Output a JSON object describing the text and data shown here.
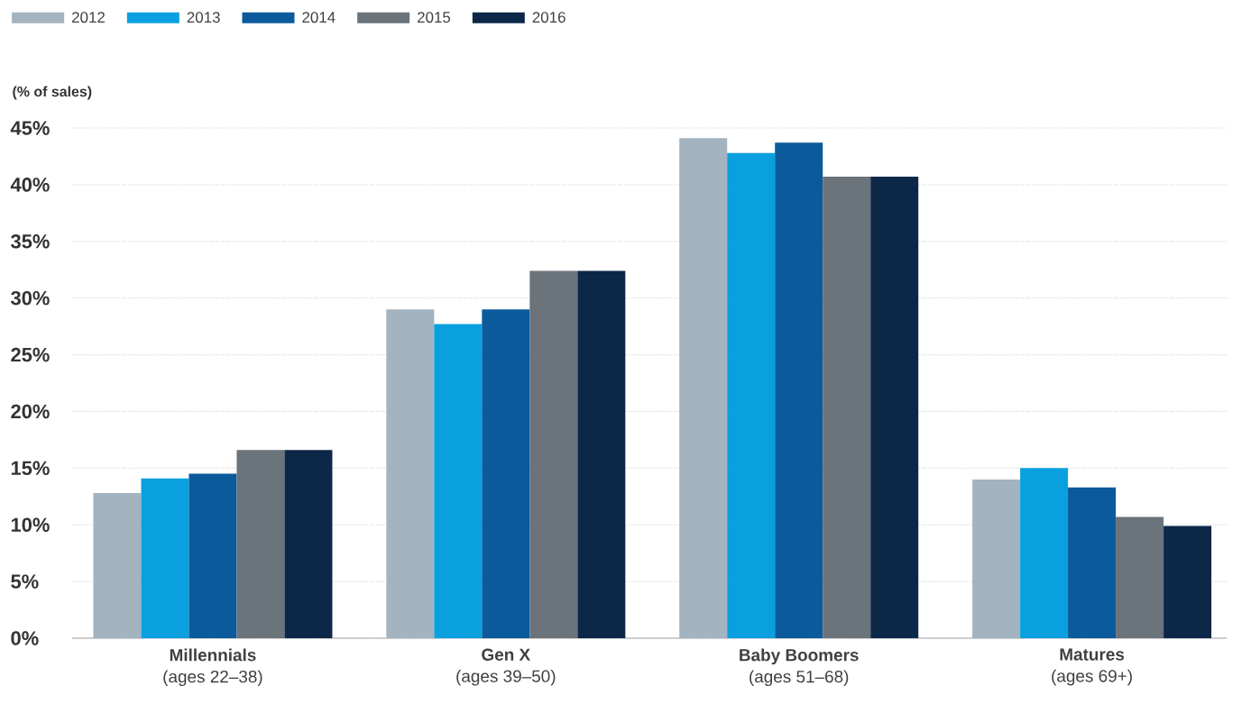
{
  "chart_data": {
    "type": "bar",
    "ylabel": "(% of sales)",
    "categories": [
      "**Millennials**\n(ages 22–38)",
      "**Gen X**\n(ages 39–50)",
      "**Baby Boomers**\n(ages 51–68)",
      "**Matures**\n(ages 69+)"
    ],
    "series": [
      {
        "name": "2012",
        "color": "#a3b3bf",
        "values": [
          12.8,
          29.0,
          44.1,
          14.0
        ]
      },
      {
        "name": "2013",
        "color": "#0aa0e0",
        "values": [
          14.1,
          27.7,
          42.8,
          15.0
        ]
      },
      {
        "name": "2014",
        "color": "#0a5a9c",
        "values": [
          14.5,
          29.0,
          43.7,
          13.3
        ]
      },
      {
        "name": "2015",
        "color": "#6b737b",
        "values": [
          16.6,
          32.4,
          40.7,
          10.7
        ]
      },
      {
        "name": "2016",
        "color": "#0c2748",
        "values": [
          16.6,
          32.4,
          40.7,
          9.9
        ]
      }
    ],
    "ylim": [
      0,
      45
    ],
    "yticks": [
      {
        "value": 0,
        "label": "0%"
      },
      {
        "value": 5,
        "label": "5%"
      },
      {
        "value": 10,
        "label": "10%"
      },
      {
        "value": 15,
        "label": "15%"
      },
      {
        "value": 20,
        "label": "20%"
      },
      {
        "value": 25,
        "label": "25%"
      },
      {
        "value": 30,
        "label": "30%"
      },
      {
        "value": 35,
        "label": "35%"
      },
      {
        "value": 40,
        "label": "40%"
      },
      {
        "value": 45,
        "label": "45%"
      }
    ],
    "grid": "y",
    "legend": "top left"
  }
}
